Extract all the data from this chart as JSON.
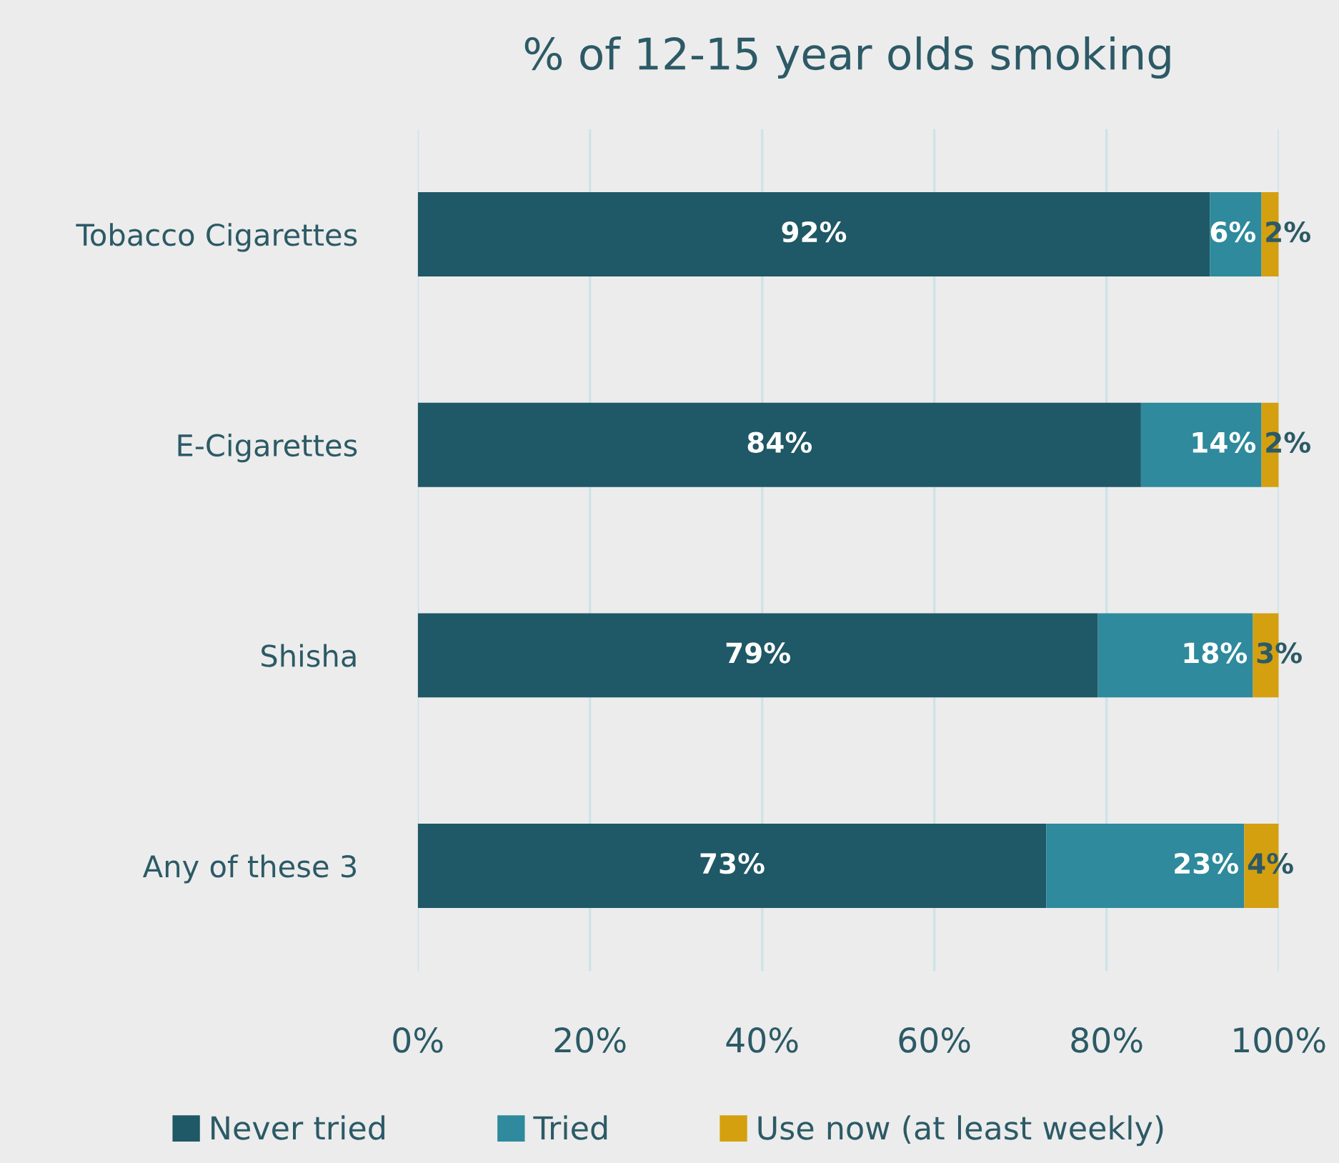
{
  "chart_data": {
    "type": "bar",
    "orientation": "horizontal",
    "stacked": true,
    "title": "% of 12-15 year olds smoking",
    "categories": [
      "Tobacco Cigarettes",
      "E-Cigarettes",
      "Shisha",
      "Any of these 3"
    ],
    "series": [
      {
        "name": "Never tried",
        "color": "#1f5866",
        "values": [
          92,
          84,
          79,
          73
        ],
        "value_labels": [
          "92%",
          "84%",
          "79%",
          "73%"
        ]
      },
      {
        "name": "Tried",
        "color": "#2e8a9c",
        "values": [
          6,
          14,
          18,
          23
        ],
        "value_labels": [
          "6%",
          "14%",
          "18%",
          "23%"
        ]
      },
      {
        "name": "Use now (at least weekly)",
        "color": "#d4a010",
        "values": [
          2,
          2,
          3,
          4
        ],
        "value_labels": [
          "2%",
          "2%",
          "3%",
          "4%"
        ]
      }
    ],
    "xlim": [
      0,
      100
    ],
    "xticks": [
      {
        "value": 0,
        "label": "0%"
      },
      {
        "value": 20,
        "label": "20%"
      },
      {
        "value": 40,
        "label": "40%"
      },
      {
        "value": 60,
        "label": "60%"
      },
      {
        "value": 80,
        "label": "80%"
      },
      {
        "value": 100,
        "label": "100%"
      }
    ],
    "grid": "x",
    "legend": "bottom"
  }
}
